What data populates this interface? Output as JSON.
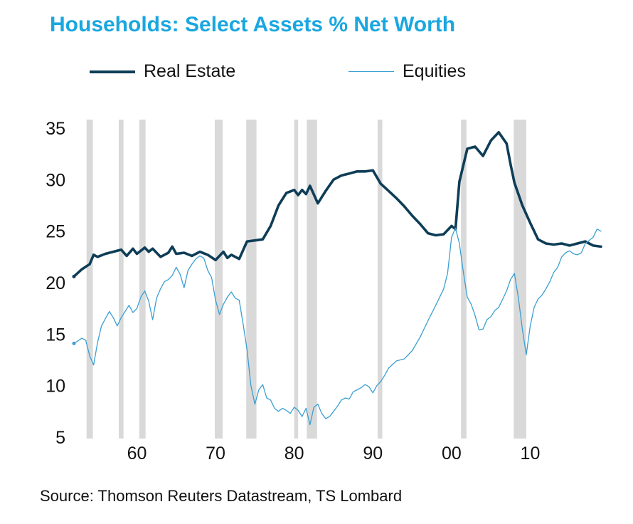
{
  "title": "Households: Select Assets % Net Worth",
  "source": "Source: Thomson Reuters Datastream, TS Lombard",
  "colors": {
    "title": "#1aa7e0",
    "real_estate": "#0e3d57",
    "equities": "#3b9fd1",
    "recession": "#d9d9d9"
  },
  "chart_data": {
    "type": "line",
    "title": "Households: Select Assets % Net Worth",
    "xlabel": "",
    "ylabel": "",
    "xlim": [
      1952,
      2019
    ],
    "ylim": [
      5,
      35
    ],
    "x_ticks": [
      1960,
      1970,
      1980,
      1990,
      2000,
      2010
    ],
    "x_tick_labels": [
      "60",
      "70",
      "80",
      "90",
      "00",
      "10"
    ],
    "y_ticks": [
      5,
      10,
      15,
      20,
      25,
      30,
      35
    ],
    "y_tick_labels": [
      "5",
      "10",
      "15",
      "20",
      "25",
      "30",
      "35"
    ],
    "legend": "top",
    "grid": false,
    "recession_shading": [
      [
        1953.6,
        1954.4
      ],
      [
        1957.7,
        1958.3
      ],
      [
        1960.3,
        1961.1
      ],
      [
        1969.9,
        1970.9
      ],
      [
        1973.9,
        1975.2
      ],
      [
        1980.0,
        1980.5
      ],
      [
        1981.6,
        1982.9
      ],
      [
        1990.6,
        1991.2
      ],
      [
        2001.2,
        2001.9
      ],
      [
        2007.9,
        2009.5
      ]
    ],
    "series": [
      {
        "name": "Real Estate",
        "x": [
          1952.0,
          1953.0,
          1954.0,
          1954.5,
          1955.0,
          1956.0,
          1957.0,
          1958.0,
          1958.7,
          1959.5,
          1960.0,
          1961.0,
          1961.5,
          1962.0,
          1963.0,
          1964.0,
          1964.5,
          1965.0,
          1966.0,
          1967.0,
          1968.0,
          1969.0,
          1970.0,
          1971.0,
          1971.5,
          1972.0,
          1973.0,
          1974.0,
          1975.0,
          1976.0,
          1977.0,
          1978.0,
          1979.0,
          1980.0,
          1980.5,
          1981.0,
          1981.5,
          1982.0,
          1983.0,
          1984.0,
          1985.0,
          1986.0,
          1987.0,
          1988.0,
          1989.0,
          1990.0,
          1991.0,
          1992.0,
          1993.0,
          1994.0,
          1995.0,
          1996.0,
          1997.0,
          1998.0,
          1999.0,
          2000.0,
          2000.5,
          2001.0,
          2002.0,
          2003.0,
          2004.0,
          2005.0,
          2006.0,
          2007.0,
          2007.5,
          2008.0,
          2009.0,
          2010.0,
          2011.0,
          2012.0,
          2013.0,
          2014.0,
          2015.0,
          2016.0,
          2017.0,
          2018.0,
          2019.0
        ],
        "values": [
          20.6,
          21.3,
          21.8,
          22.7,
          22.5,
          22.8,
          23.0,
          23.2,
          22.6,
          23.3,
          22.8,
          23.4,
          23.0,
          23.3,
          22.5,
          22.9,
          23.5,
          22.8,
          22.9,
          22.6,
          23.0,
          22.7,
          22.2,
          23.0,
          22.4,
          22.7,
          22.3,
          24.0,
          24.1,
          24.2,
          25.5,
          27.5,
          28.7,
          29.0,
          28.5,
          29.0,
          28.6,
          29.4,
          27.7,
          28.9,
          30.0,
          30.4,
          30.6,
          30.8,
          30.8,
          30.9,
          29.6,
          28.9,
          28.2,
          27.4,
          26.5,
          25.7,
          24.8,
          24.6,
          24.7,
          25.5,
          25.2,
          29.8,
          33.0,
          33.2,
          32.3,
          33.8,
          34.6,
          33.5,
          31.5,
          29.7,
          27.5,
          25.8,
          24.2,
          23.8,
          23.7,
          23.8,
          23.6,
          23.8,
          24.0,
          23.6,
          23.5
        ]
      },
      {
        "name": "Equities",
        "x": [
          1952.0,
          1953.0,
          1953.5,
          1954.0,
          1954.5,
          1955.0,
          1955.5,
          1956.0,
          1956.5,
          1957.0,
          1957.5,
          1958.0,
          1958.5,
          1959.0,
          1959.5,
          1960.0,
          1960.5,
          1961.0,
          1961.5,
          1962.0,
          1962.5,
          1963.0,
          1963.5,
          1964.0,
          1964.5,
          1965.0,
          1965.5,
          1966.0,
          1966.5,
          1967.0,
          1967.5,
          1968.0,
          1968.5,
          1969.0,
          1969.5,
          1970.0,
          1970.5,
          1971.0,
          1971.5,
          1972.0,
          1972.5,
          1973.0,
          1973.5,
          1974.0,
          1974.5,
          1975.0,
          1975.5,
          1976.0,
          1976.5,
          1977.0,
          1977.5,
          1978.0,
          1978.5,
          1979.0,
          1979.5,
          1980.0,
          1980.5,
          1981.0,
          1981.5,
          1982.0,
          1982.5,
          1983.0,
          1983.5,
          1984.0,
          1984.5,
          1985.0,
          1985.5,
          1986.0,
          1986.5,
          1987.0,
          1987.5,
          1988.0,
          1988.5,
          1989.0,
          1989.5,
          1990.0,
          1990.5,
          1991.0,
          1991.5,
          1992.0,
          1993.0,
          1994.0,
          1995.0,
          1996.0,
          1997.0,
          1998.0,
          1999.0,
          1999.5,
          2000.0,
          2000.5,
          2001.0,
          2001.5,
          2002.0,
          2002.5,
          2003.0,
          2003.5,
          2004.0,
          2004.5,
          2005.0,
          2005.5,
          2006.0,
          2006.5,
          2007.0,
          2007.5,
          2008.0,
          2008.5,
          2009.0,
          2009.5,
          2010.0,
          2010.5,
          2011.0,
          2011.5,
          2012.0,
          2012.5,
          2013.0,
          2013.5,
          2014.0,
          2014.5,
          2015.0,
          2015.5,
          2016.0,
          2016.5,
          2017.0,
          2017.5,
          2018.0,
          2018.5,
          2019.0
        ],
        "values": [
          14.1,
          14.6,
          14.4,
          12.9,
          12.0,
          14.2,
          15.8,
          16.5,
          17.2,
          16.6,
          15.8,
          16.6,
          17.2,
          17.8,
          17.1,
          17.5,
          18.6,
          19.2,
          18.2,
          16.4,
          18.5,
          19.4,
          20.1,
          20.3,
          20.7,
          21.5,
          20.8,
          19.5,
          21.2,
          21.8,
          22.3,
          22.6,
          22.4,
          21.2,
          20.5,
          18.3,
          16.9,
          17.9,
          18.6,
          19.1,
          18.5,
          18.3,
          16.0,
          13.5,
          10.0,
          8.2,
          9.6,
          10.1,
          8.8,
          8.6,
          7.8,
          7.5,
          7.8,
          7.6,
          7.3,
          7.9,
          7.6,
          7.0,
          7.8,
          6.2,
          7.9,
          8.2,
          7.3,
          6.8,
          7.0,
          7.5,
          8.0,
          8.6,
          8.8,
          8.7,
          9.4,
          9.6,
          9.8,
          10.1,
          9.9,
          9.3,
          10.0,
          10.4,
          11.0,
          11.7,
          12.4,
          12.6,
          13.4,
          14.7,
          16.3,
          17.8,
          19.4,
          20.9,
          24.4,
          25.3,
          23.8,
          21.0,
          18.6,
          17.9,
          16.8,
          15.4,
          15.5,
          16.4,
          16.7,
          17.3,
          17.6,
          18.4,
          19.2,
          20.3,
          20.9,
          18.5,
          15.5,
          13.0,
          15.8,
          17.6,
          18.4,
          18.8,
          19.4,
          20.1,
          21.0,
          21.5,
          22.5,
          22.9,
          23.1,
          22.8,
          22.7,
          22.9,
          23.8,
          24.1,
          24.4,
          25.2,
          25.0
        ]
      }
    ]
  }
}
